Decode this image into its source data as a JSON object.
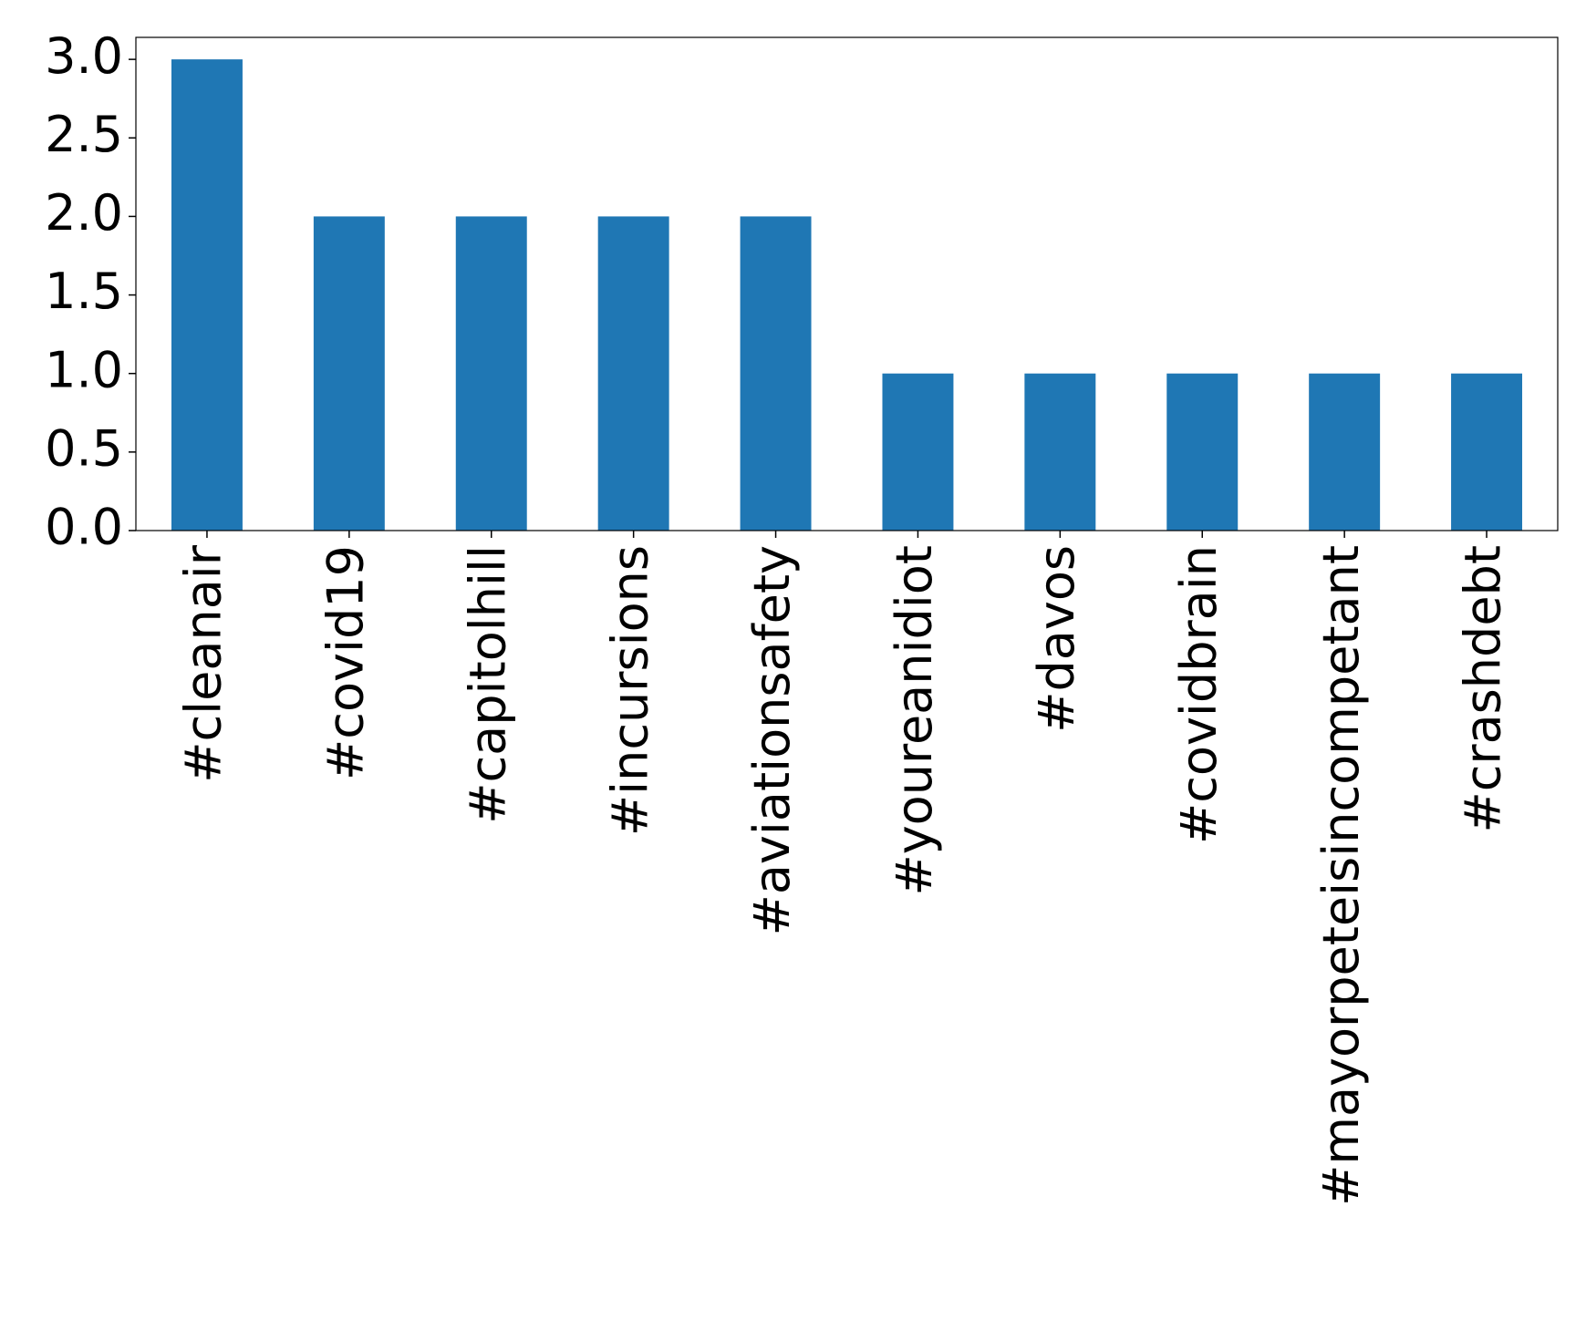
{
  "chart_data": {
    "type": "bar",
    "categories": [
      "#cleanair",
      "#covid19",
      "#capitolhill",
      "#incursions",
      "#aviationsafety",
      "#youreanidiot",
      "#davos",
      "#covidbrain",
      "#mayorpeteisincompetant",
      "#crashdebt"
    ],
    "values": [
      3,
      2,
      2,
      2,
      2,
      1,
      1,
      1,
      1,
      1
    ],
    "color": "#1f77b4",
    "ylim": [
      0,
      3.14
    ],
    "yticks": [
      {
        "value": 0,
        "label": "0.0"
      },
      {
        "value": 0.5,
        "label": "0.5"
      },
      {
        "value": 1,
        "label": "1.0"
      },
      {
        "value": 1.5,
        "label": "1.5"
      },
      {
        "value": 2,
        "label": "2.0"
      },
      {
        "value": 2.5,
        "label": "2.5"
      },
      {
        "value": 3,
        "label": "3.0"
      }
    ],
    "grid": false
  }
}
